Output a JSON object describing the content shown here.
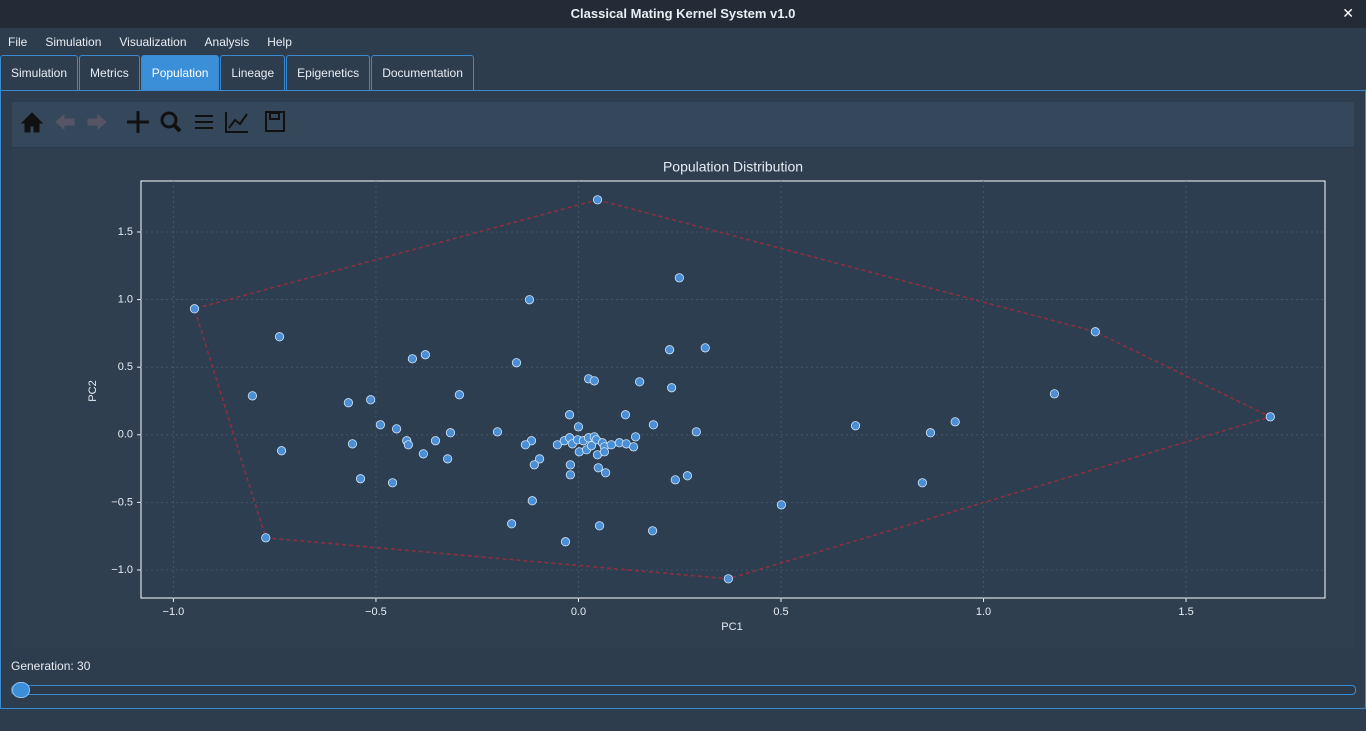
{
  "window": {
    "title": "Classical Mating Kernel System v1.0",
    "close": "✕"
  },
  "menu": [
    "File",
    "Simulation",
    "Visualization",
    "Analysis",
    "Help"
  ],
  "tabs": [
    "Simulation",
    "Metrics",
    "Population",
    "Lineage",
    "Epigenetics",
    "Documentation"
  ],
  "status": {
    "generation": "Generation: 30"
  },
  "chart_data": {
    "type": "scatter",
    "title": "Population Distribution",
    "xlabel": "PC1",
    "ylabel": "PC2",
    "x": [
      0.047,
      0.249,
      -0.121,
      -0.948,
      -0.738,
      1.276,
      -0.41,
      -0.378,
      -0.153,
      0.225,
      0.313,
      0.025,
      0.039,
      0.151,
      0.23,
      -0.805,
      -0.294,
      -0.568,
      -0.513,
      1.175,
      -0.022,
      0.116,
      1.708,
      -0.489,
      -0.449,
      0.185,
      0.684,
      0.93,
      0.869,
      0.0,
      -0.316,
      -0.2,
      0.291,
      -0.353,
      -0.424,
      -0.42,
      -0.558,
      -0.733,
      -0.383,
      -0.323,
      -0.116,
      -0.131,
      -0.096,
      -0.109,
      0.141,
      -0.052,
      -0.035,
      -0.022,
      -0.015,
      -0.002,
      0.012,
      0.025,
      0.039,
      0.044,
      0.059,
      0.064,
      0.081,
      0.101,
      0.118,
      0.136,
      0.002,
      0.02,
      0.032,
      0.047,
      0.064,
      -0.02,
      -0.02,
      0.049,
      0.067,
      -0.538,
      -0.459,
      0.239,
      0.269,
      0.849,
      -0.114,
      0.501,
      -0.165,
      0.052,
      0.183,
      -0.032,
      -0.772,
      0.37
    ],
    "y": [
      1.738,
      1.161,
      0.999,
      0.932,
      0.725,
      0.762,
      0.562,
      0.592,
      0.533,
      0.629,
      0.643,
      0.414,
      0.399,
      0.392,
      0.348,
      0.288,
      0.296,
      0.237,
      0.259,
      0.303,
      0.148,
      0.148,
      0.133,
      0.074,
      0.044,
      0.074,
      0.067,
      0.096,
      0.015,
      0.059,
      0.015,
      0.022,
      0.022,
      -0.044,
      -0.044,
      -0.074,
      -0.067,
      -0.118,
      -0.141,
      -0.178,
      -0.044,
      -0.074,
      -0.178,
      -0.222,
      -0.015,
      -0.074,
      -0.044,
      -0.022,
      -0.067,
      -0.037,
      -0.044,
      -0.022,
      -0.015,
      -0.037,
      -0.059,
      -0.089,
      -0.074,
      -0.059,
      -0.067,
      -0.089,
      -0.126,
      -0.111,
      -0.081,
      -0.148,
      -0.126,
      -0.222,
      -0.296,
      -0.244,
      -0.281,
      -0.325,
      -0.355,
      -0.333,
      -0.303,
      -0.355,
      -0.488,
      -0.518,
      -0.658,
      -0.673,
      -0.71,
      -0.791,
      -0.762,
      -1.065
    ],
    "color": "#4a8fd6",
    "hull_x": [
      0.047,
      1.276,
      1.708,
      0.37,
      -0.772,
      -0.948
    ],
    "hull_y": [
      1.738,
      0.762,
      0.133,
      -1.065,
      -0.762,
      0.932
    ],
    "hull_color": "#8b2f3f",
    "xlim": [
      -1.08,
      1.843
    ],
    "ylim": [
      -1.207,
      1.877
    ],
    "xticks": [
      {
        "value": -1.0,
        "label": "−1.0"
      },
      {
        "value": -0.5,
        "label": "−0.5"
      },
      {
        "value": 0.0,
        "label": "0.0"
      },
      {
        "value": 0.5,
        "label": "0.5"
      },
      {
        "value": 1.0,
        "label": "1.0"
      },
      {
        "value": 1.5,
        "label": "1.5"
      }
    ],
    "yticks": [
      {
        "value": -1.0,
        "label": "−1.0"
      },
      {
        "value": -0.5,
        "label": "−0.5"
      },
      {
        "value": 0.0,
        "label": "0.0"
      },
      {
        "value": 0.5,
        "label": "0.5"
      },
      {
        "value": 1.0,
        "label": "1.0"
      },
      {
        "value": 1.5,
        "label": "1.5"
      }
    ],
    "grid": true
  }
}
